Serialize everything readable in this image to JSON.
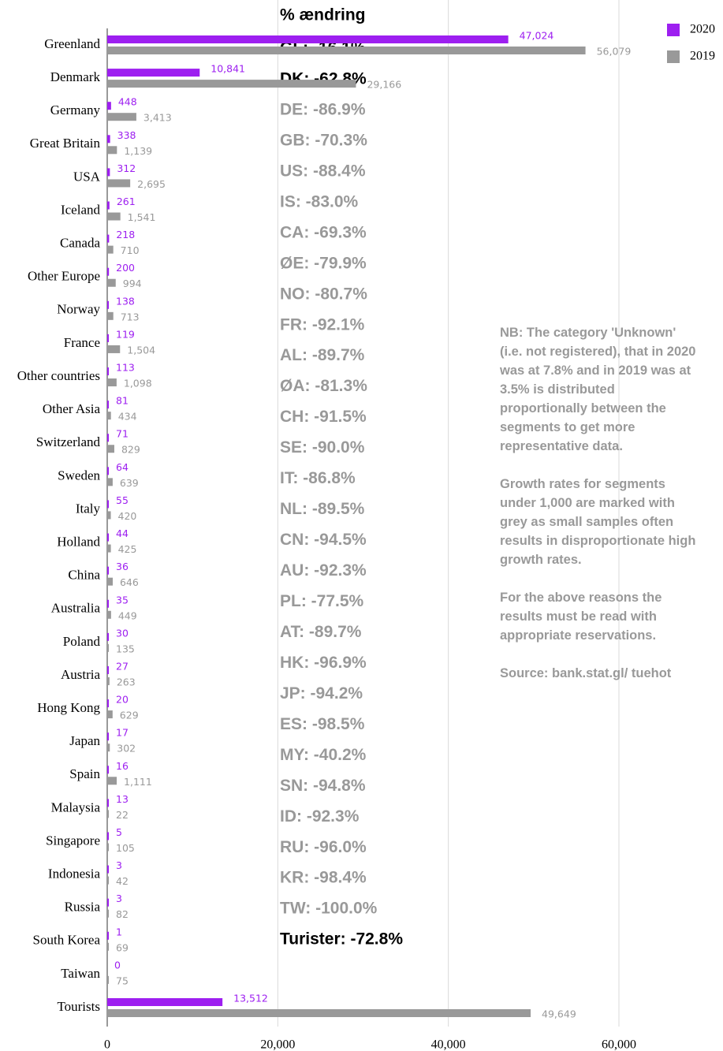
{
  "chart_data": {
    "type": "hbar",
    "categories": [
      "Greenland",
      "Denmark",
      "Germany",
      "Great Britain",
      "USA",
      "Iceland",
      "Canada",
      "Other Europe",
      "Norway",
      "France",
      "Other countries",
      "Other Asia",
      "Switzerland",
      "Sweden",
      "Italy",
      "Holland",
      "China",
      "Australia",
      "Poland",
      "Austria",
      "Hong Kong",
      "Japan",
      "Spain",
      "Malaysia",
      "Singapore",
      "Indonesia",
      "Russia",
      "South Korea",
      "Taiwan",
      "Tourists"
    ],
    "series": [
      {
        "name": "2020",
        "color": "#9d1ff0",
        "values": [
          47024,
          10841,
          448,
          338,
          312,
          261,
          218,
          200,
          138,
          119,
          113,
          81,
          71,
          64,
          55,
          44,
          36,
          35,
          30,
          27,
          20,
          17,
          16,
          13,
          5,
          3,
          3,
          1,
          0,
          13512
        ],
        "value_labels": [
          "47,024",
          "10,841",
          "448",
          "338",
          "312",
          "261",
          "218",
          "200",
          "138",
          "119",
          "113",
          "81",
          "71",
          "64",
          "55",
          "44",
          "36",
          "35",
          "30",
          "27",
          "20",
          "17",
          "16",
          "13",
          "5",
          "3",
          "3",
          "1",
          "0",
          "13,512"
        ]
      },
      {
        "name": "2019",
        "color": "#999999",
        "values": [
          56079,
          29166,
          3413,
          1139,
          2695,
          1541,
          710,
          994,
          713,
          1504,
          1098,
          434,
          829,
          639,
          420,
          425,
          646,
          449,
          135,
          263,
          629,
          302,
          1111,
          22,
          105,
          42,
          82,
          69,
          75,
          49649
        ],
        "value_labels": [
          "56,079",
          "29,166",
          "3,413",
          "1,139",
          "2,695",
          "1,541",
          "710",
          "994",
          "713",
          "1,504",
          "1,098",
          "434",
          "829",
          "639",
          "420",
          "425",
          "646",
          "449",
          "135",
          "263",
          "629",
          "302",
          "1,111",
          "22",
          "105",
          "42",
          "82",
          "69",
          "75",
          "49,649"
        ]
      }
    ],
    "xlim": [
      0,
      72000
    ],
    "xticks": [
      0,
      {
        "value": 20000,
        "label": "20,000"
      },
      {
        "value": 40000,
        "label": "40,000"
      },
      {
        "value": 60000,
        "label": "60,000"
      }
    ],
    "grid": true,
    "legend": "top-right",
    "change_header": "% ændring",
    "change_labels": [
      {
        "text": "GL: -16.1%",
        "color": "#000000"
      },
      {
        "text": "DK: -62.8%",
        "color": "#000000"
      },
      {
        "text": "DE: -86.9%",
        "color": "#999999"
      },
      {
        "text": "GB: -70.3%",
        "color": "#999999"
      },
      {
        "text": "US: -88.4%",
        "color": "#999999"
      },
      {
        "text": "IS: -83.0%",
        "color": "#999999"
      },
      {
        "text": "CA: -69.3%",
        "color": "#999999"
      },
      {
        "text": "ØE: -79.9%",
        "color": "#999999"
      },
      {
        "text": "NO: -80.7%",
        "color": "#999999"
      },
      {
        "text": "FR: -92.1%",
        "color": "#999999"
      },
      {
        "text": "AL: -89.7%",
        "color": "#999999"
      },
      {
        "text": "ØA: -81.3%",
        "color": "#999999"
      },
      {
        "text": "CH: -91.5%",
        "color": "#999999"
      },
      {
        "text": "SE: -90.0%",
        "color": "#999999"
      },
      {
        "text": "IT: -86.8%",
        "color": "#999999"
      },
      {
        "text": "NL: -89.5%",
        "color": "#999999"
      },
      {
        "text": "CN: -94.5%",
        "color": "#999999"
      },
      {
        "text": "AU: -92.3%",
        "color": "#999999"
      },
      {
        "text": "PL: -77.5%",
        "color": "#999999"
      },
      {
        "text": "AT: -89.7%",
        "color": "#999999"
      },
      {
        "text": "HK: -96.9%",
        "color": "#999999"
      },
      {
        "text": "JP: -94.2%",
        "color": "#999999"
      },
      {
        "text": "ES: -98.5%",
        "color": "#999999"
      },
      {
        "text": "MY: -40.2%",
        "color": "#999999"
      },
      {
        "text": "SN: -94.8%",
        "color": "#999999"
      },
      {
        "text": "ID: -92.3%",
        "color": "#999999"
      },
      {
        "text": "RU: -96.0%",
        "color": "#999999"
      },
      {
        "text": "KR: -98.4%",
        "color": "#999999"
      },
      {
        "text": "TW: -100.0%",
        "color": "#999999"
      },
      {
        "text": "Turister: -72.8%",
        "color": "#000000"
      }
    ],
    "notes": [
      "NB: The category 'Unknown' (i.e. not registered), that in 2020 was at 7.8% and in 2019 was at 3.5% is distributed proportionally between the segments to get more representative data.",
      "Growth rates for segments under 1,000 are marked with grey as small samples often results in disproportionate high growth rates.",
      "For the above reasons the results must be read with appropriate reservations.",
      "Source: bank.stat.gl/ tuehot"
    ]
  }
}
